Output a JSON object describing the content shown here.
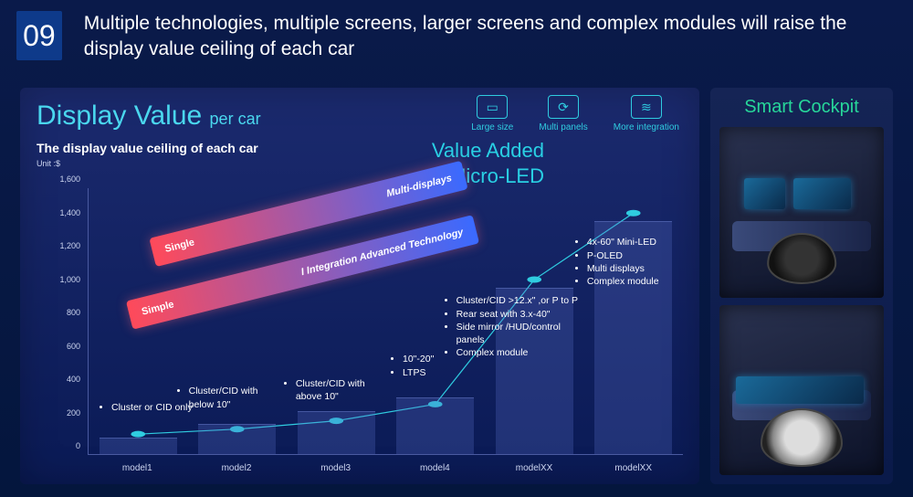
{
  "slide_number": "09",
  "title": "Multiple technologies, multiple screens, larger screens and complex modules will raise the display value ceiling of each car",
  "left": {
    "main_title": "Display Value",
    "main_title_sub": "per car",
    "subtitle": "The display value ceiling of each car",
    "unit_label": "Unit :$",
    "icons": [
      {
        "name": "large-size-icon",
        "glyph": "▭",
        "label": "Large size"
      },
      {
        "name": "multi-panels-icon",
        "glyph": "⟳",
        "label": "Multi panels"
      },
      {
        "name": "more-integration-icon",
        "glyph": "≋",
        "label": "More integration"
      }
    ],
    "value_added": "Value Added",
    "micro_led": "+Micro-LED",
    "chart": {
      "type": "line+bar",
      "ylim": [
        0,
        1600
      ],
      "ytick_step": 200,
      "y_ticks": [
        "0",
        "200",
        "400",
        "600",
        "800",
        "1,000",
        "1,200",
        "1,400",
        "1,600"
      ],
      "categories": [
        "model1",
        "model2",
        "model3",
        "model4",
        "modelXX",
        "modelXX"
      ],
      "line_values": [
        120,
        150,
        200,
        300,
        1050,
        1450
      ],
      "bar_values": [
        100,
        180,
        260,
        340,
        1000,
        1400
      ],
      "line_color": "#2fcce0",
      "line_width": 3,
      "marker_size": 5,
      "bar_color": "rgba(90,110,200,.28)",
      "axis_color": "#4a5aa0",
      "band1": {
        "left_label": "Single",
        "right_label": "Multi-displays",
        "gradient_from": "#ff4a5a",
        "gradient_to": "#3a6aff",
        "top_pct": 4,
        "left_pct": 10,
        "width_pct": 54,
        "rotate_deg": -14
      },
      "band2": {
        "left_label": "Simple",
        "right_label": "I Integration Advanced Technology",
        "gradient_from": "#ff4a5a",
        "gradient_to": "#3a6aff",
        "top_pct": 26,
        "left_pct": 6,
        "width_pct": 60,
        "rotate_deg": -14
      }
    },
    "annotations": {
      "m1": [
        "Cluster or CID only"
      ],
      "m2": [
        "Cluster/CID with below 10\""
      ],
      "m3": [
        "Cluster/CID with above 10\""
      ],
      "m4": [
        "10\"-20\"",
        "LTPS"
      ],
      "m5": [
        "Cluster/CID >12.x\" ,or P to P",
        "Rear seat with 3.x-40\"",
        "Side mirror /HUD/control panels",
        "Complex module"
      ],
      "m6": [
        "4x-60\" Mini-LED",
        "P-OLED",
        "Multi displays",
        "Complex module"
      ]
    }
  },
  "right": {
    "title": "Smart Cockpit",
    "photos": [
      "cockpit-photo-1",
      "cockpit-photo-2"
    ]
  },
  "colors": {
    "bg_top": "#0a1a4a",
    "bg_bottom": "#04163d",
    "cyan": "#2fcce0",
    "green": "#27d79a"
  }
}
